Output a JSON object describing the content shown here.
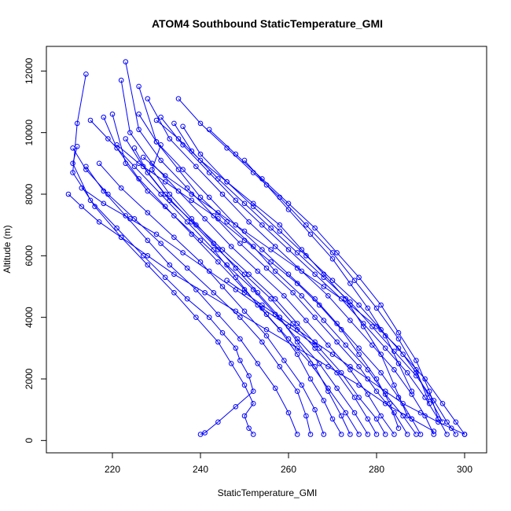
{
  "chart_data": {
    "type": "line",
    "title": "ATOM4 Southbound StaticTemperature_GMI",
    "xlabel": "StaticTemperature_GMI",
    "ylabel": "Altitude (m)",
    "xlim": [
      205,
      305
    ],
    "ylim": [
      -400,
      12800
    ],
    "xticks": [
      220,
      240,
      260,
      280,
      300
    ],
    "yticks": [
      0,
      2000,
      4000,
      6000,
      8000,
      10000,
      12000
    ],
    "xtick_labels": [
      "220",
      "240",
      "260",
      "280",
      "300"
    ],
    "ytick_labels": [
      "0",
      "2000",
      "4000",
      "6000",
      "8000",
      "10000",
      "12000"
    ],
    "color": "#0000ff",
    "marker": "open-circle",
    "grid": false,
    "legend": "none",
    "series": [
      {
        "x": [
          240,
          241,
          244,
          248,
          252,
          251,
          249,
          248,
          245,
          242,
          237,
          232,
          227,
          221,
          215,
          211,
          212
        ],
        "y": [
          200,
          250,
          600,
          1100,
          1600,
          2100,
          2600,
          3000,
          3500,
          4000,
          4600,
          5300,
          6000,
          6900,
          7800,
          9000,
          9550
        ]
      },
      {
        "x": [
          252,
          251,
          250,
          252,
          250,
          247,
          244,
          239,
          234,
          228,
          222,
          216,
          211,
          212,
          214
        ],
        "y": [
          200,
          400,
          800,
          1200,
          1800,
          2500,
          3200,
          4000,
          4800,
          5700,
          6600,
          7600,
          8700,
          10300,
          11900
        ]
      },
      {
        "x": [
          265,
          264,
          262,
          258,
          254,
          249,
          243,
          237,
          231,
          225,
          219,
          214,
          211
        ],
        "y": [
          200,
          800,
          1600,
          2400,
          3200,
          4000,
          4800,
          5600,
          6400,
          7200,
          8000,
          8800,
          9500
        ]
      },
      {
        "x": [
          272,
          270,
          268,
          265,
          262,
          258,
          253,
          248,
          243,
          237,
          231,
          225,
          219,
          215
        ],
        "y": [
          200,
          700,
          1300,
          2000,
          2800,
          3600,
          4400,
          5300,
          6200,
          7100,
          8000,
          8900,
          9800,
          10400
        ]
      },
      {
        "x": [
          276,
          273,
          269,
          265,
          260,
          255,
          250,
          244,
          238,
          232,
          226,
          221,
          218
        ],
        "y": [
          200,
          900,
          1700,
          2500,
          3300,
          4100,
          4900,
          5800,
          6700,
          7600,
          8500,
          9500,
          10500
        ]
      },
      {
        "x": [
          280,
          278,
          275,
          271,
          266,
          261,
          256,
          250,
          244,
          238,
          232,
          227,
          223
        ],
        "y": [
          200,
          700,
          1400,
          2200,
          3000,
          3800,
          4600,
          5400,
          6200,
          7100,
          8000,
          8900,
          9800
        ]
      },
      {
        "x": [
          284,
          281,
          278,
          274,
          269,
          264,
          259,
          253,
          247,
          241,
          235,
          229,
          224,
          222
        ],
        "y": [
          200,
          800,
          1500,
          2300,
          3100,
          3900,
          4700,
          5500,
          6300,
          7200,
          8100,
          9000,
          10000,
          11700
        ]
      },
      {
        "x": [
          287,
          284,
          280,
          276,
          271,
          266,
          261,
          255,
          249,
          243,
          237,
          231,
          226,
          223
        ],
        "y": [
          200,
          900,
          1600,
          2400,
          3200,
          4000,
          4800,
          5600,
          6400,
          7300,
          8200,
          9100,
          10100,
          12300
        ]
      },
      {
        "x": [
          290,
          288,
          285,
          281,
          276,
          271,
          266,
          260,
          254,
          248,
          242,
          236,
          230,
          226
        ],
        "y": [
          200,
          700,
          1400,
          2200,
          3000,
          3800,
          4600,
          5400,
          6200,
          7000,
          7900,
          8800,
          9700,
          11500
        ]
      },
      {
        "x": [
          293,
          291,
          288,
          284,
          279,
          274,
          269,
          263,
          257,
          251,
          245,
          239,
          233,
          228
        ],
        "y": [
          200,
          800,
          1500,
          2300,
          3100,
          3900,
          4700,
          5500,
          6300,
          7100,
          8000,
          8900,
          9800,
          11100
        ]
      },
      {
        "x": [
          296,
          294,
          291,
          287,
          282,
          277,
          272,
          266,
          260,
          254,
          248,
          242,
          236,
          231
        ],
        "y": [
          200,
          700,
          1400,
          2200,
          3000,
          3800,
          4600,
          5400,
          6200,
          7000,
          7800,
          8700,
          9600,
          10500
        ]
      },
      {
        "x": [
          298,
          296,
          293,
          289,
          284,
          279,
          274,
          268,
          262,
          256,
          250,
          244,
          238,
          234
        ],
        "y": [
          200,
          600,
          1300,
          2100,
          2900,
          3700,
          4500,
          5300,
          6100,
          6900,
          7700,
          8500,
          9400,
          10300
        ]
      },
      {
        "x": [
          300,
          298,
          295,
          291,
          286,
          281,
          276,
          270,
          264,
          258,
          252,
          246,
          240,
          236
        ],
        "y": [
          200,
          600,
          1200,
          2000,
          2800,
          3600,
          4400,
          5200,
          6000,
          6800,
          7600,
          8400,
          9300,
          10200
        ]
      },
      {
        "x": [
          268,
          266,
          263,
          259,
          255,
          250,
          245,
          240,
          234,
          228,
          222,
          217
        ],
        "y": [
          200,
          1000,
          1800,
          2600,
          3400,
          4200,
          5000,
          5800,
          6600,
          7400,
          8200,
          9000
        ]
      },
      {
        "x": [
          262,
          260,
          257,
          253,
          249,
          244,
          239,
          233,
          228,
          223,
          218,
          214
        ],
        "y": [
          200,
          900,
          1700,
          2500,
          3300,
          4100,
          4900,
          5700,
          6500,
          7300,
          8100,
          8900
        ]
      },
      {
        "x": [
          278,
          275,
          271,
          267,
          262,
          257,
          252,
          246,
          240,
          234,
          228,
          223,
          220
        ],
        "y": [
          200,
          900,
          1700,
          2500,
          3300,
          4100,
          4900,
          5700,
          6500,
          7300,
          8100,
          9000,
          10600
        ]
      },
      {
        "x": [
          282,
          280,
          276,
          272,
          267,
          262,
          257,
          251,
          245,
          239,
          233,
          228,
          225
        ],
        "y": [
          200,
          700,
          1400,
          2200,
          3000,
          3800,
          4600,
          5400,
          6200,
          7000,
          7800,
          8700,
          9500
        ]
      },
      {
        "x": [
          274,
          272,
          269,
          266,
          262,
          258,
          253,
          248,
          243,
          238,
          233,
          229,
          231
        ],
        "y": [
          200,
          800,
          1600,
          2400,
          3200,
          4000,
          4800,
          5600,
          6400,
          7200,
          8000,
          8800,
          9600
        ]
      },
      {
        "x": [
          289,
          286,
          282,
          278,
          273,
          268,
          263,
          257,
          252,
          246,
          240,
          235,
          230,
          226
        ],
        "y": [
          200,
          800,
          1500,
          2300,
          3100,
          3900,
          4700,
          5500,
          6300,
          7100,
          7900,
          8800,
          9700,
          10600
        ]
      },
      {
        "x": [
          246,
          250,
          254,
          258,
          262,
          266,
          270,
          274,
          278,
          282,
          286,
          290,
          294,
          297,
          300
        ],
        "y": [
          5200,
          4800,
          4400,
          4000,
          3600,
          3200,
          2800,
          2400,
          2000,
          1600,
          1200,
          900,
          600,
          400,
          200
        ]
      },
      {
        "x": [
          227,
          232,
          238,
          244,
          250,
          256,
          262,
          268,
          274,
          280,
          285,
          289,
          292,
          295
        ],
        "y": [
          9200,
          8600,
          8000,
          7400,
          6800,
          6200,
          5600,
          5000,
          4400,
          3700,
          3000,
          2200,
          1400,
          600
        ]
      },
      {
        "x": [
          221,
          226,
          232,
          238,
          244,
          250,
          256,
          262,
          267,
          272,
          276,
          280,
          283,
          285
        ],
        "y": [
          9600,
          9000,
          8400,
          7800,
          7200,
          6500,
          5800,
          5100,
          4400,
          3600,
          2800,
          2000,
          1200,
          400
        ]
      },
      {
        "x": [
          210,
          213,
          217,
          222,
          228,
          234,
          241,
          248,
          255,
          262,
          269,
          276,
          282,
          288,
          293
        ],
        "y": [
          8000,
          7600,
          7100,
          6600,
          6000,
          5400,
          4800,
          4200,
          3600,
          3000,
          2400,
          1800,
          1200,
          700,
          300
        ]
      },
      {
        "x": [
          230,
          235,
          240,
          246,
          252,
          258,
          263,
          268,
          273,
          277,
          281,
          284,
          287
        ],
        "y": [
          10400,
          9800,
          9100,
          8400,
          7700,
          7000,
          6200,
          5400,
          4600,
          3700,
          2800,
          1800,
          800
        ]
      },
      {
        "x": [
          235,
          240,
          246,
          252,
          258,
          264,
          270,
          275,
          280,
          285,
          289,
          292
        ],
        "y": [
          11100,
          10300,
          9500,
          8700,
          7900,
          7000,
          6100,
          5200,
          4300,
          3300,
          2300,
          1200
        ]
      },
      {
        "x": [
          242,
          248,
          254,
          260,
          266,
          271,
          276,
          281,
          285,
          289,
          292,
          294
        ],
        "y": [
          10100,
          9300,
          8500,
          7700,
          6900,
          6100,
          5300,
          4400,
          3500,
          2600,
          1600,
          700
        ]
      },
      {
        "x": [
          250,
          255,
          260,
          265,
          270,
          274,
          278,
          282,
          285,
          288
        ],
        "y": [
          9100,
          8300,
          7500,
          6700,
          5900,
          5100,
          4300,
          3400,
          2500,
          1600
        ]
      },
      {
        "x": [
          213,
          218,
          224,
          230,
          236,
          242,
          248,
          254,
          260,
          266
        ],
        "y": [
          8200,
          7700,
          7200,
          6700,
          6100,
          5500,
          4900,
          4300,
          3700,
          3100
        ]
      }
    ]
  }
}
